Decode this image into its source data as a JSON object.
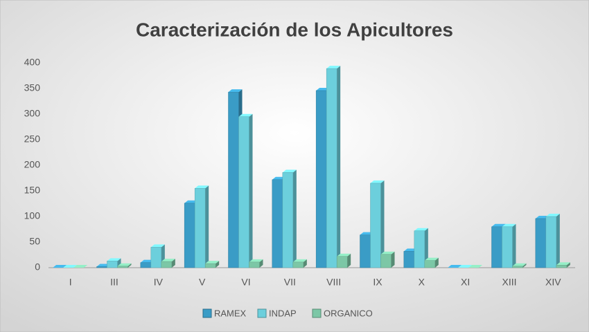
{
  "chart_data": {
    "type": "bar3d",
    "title": "Caracterización de los Apicultores",
    "categories": [
      "I",
      "III",
      "IV",
      "V",
      "VI",
      "VII",
      "VIII",
      "IX",
      "X",
      "XI",
      "XIII",
      "XIV"
    ],
    "series": [
      {
        "name": "RAMEX",
        "color": "#3a9cc6",
        "values": [
          0,
          2,
          10,
          126,
          343,
          172,
          346,
          64,
          32,
          0,
          80,
          96
        ]
      },
      {
        "name": "INDAP",
        "color": "#6ccfdc",
        "values": [
          0,
          13,
          40,
          155,
          295,
          186,
          389,
          165,
          72,
          0,
          80,
          100
        ]
      },
      {
        "name": "ORGANICO",
        "color": "#7cc7a6",
        "values": [
          0,
          3,
          12,
          8,
          11,
          11,
          22,
          26,
          14,
          0,
          3,
          5
        ]
      }
    ],
    "ylim": [
      0,
      400
    ],
    "yticks": [
      0,
      50,
      100,
      150,
      200,
      250,
      300,
      350,
      400
    ],
    "legend": "bottom"
  }
}
